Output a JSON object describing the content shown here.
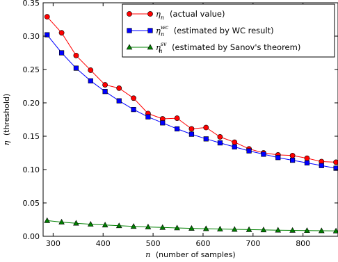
{
  "chart_data": {
    "type": "line",
    "xlabel_var": "n",
    "xlabel_rest": "(number of samples)",
    "ylabel_var": "η",
    "ylabel_rest": "(threshold)",
    "xlim": [
      280,
      870
    ],
    "ylim": [
      0.0,
      0.35
    ],
    "xticks": [
      300,
      400,
      500,
      600,
      700,
      800
    ],
    "yticks": [
      0.0,
      0.05,
      0.1,
      0.15,
      0.2,
      0.25,
      0.3,
      0.35
    ],
    "ytick_labels": [
      "0.00",
      "0.05",
      "0.10",
      "0.15",
      "0.20",
      "0.25",
      "0.30",
      "0.35"
    ],
    "legend_position": "top-right",
    "grid": false,
    "x": [
      288,
      317,
      346,
      375,
      404,
      432,
      461,
      490,
      519,
      548,
      577,
      606,
      634,
      663,
      692,
      721,
      750,
      779,
      808,
      837,
      866
    ],
    "series": [
      {
        "sym": "η",
        "sub": "n",
        "sup": "",
        "desc": "(actual value)",
        "color": "#ff0000",
        "marker": "circle",
        "values": [
          0.329,
          0.305,
          0.271,
          0.249,
          0.227,
          0.222,
          0.207,
          0.184,
          0.176,
          0.177,
          0.161,
          0.163,
          0.149,
          0.141,
          0.131,
          0.125,
          0.122,
          0.121,
          0.117,
          0.112,
          0.111
        ]
      },
      {
        "sym": "η",
        "sub": "n",
        "sup": "wc",
        "desc": "(estimated by WC result)",
        "color": "#0000ff",
        "marker": "square",
        "values": [
          0.302,
          0.275,
          0.252,
          0.233,
          0.217,
          0.203,
          0.19,
          0.179,
          0.17,
          0.161,
          0.153,
          0.146,
          0.14,
          0.134,
          0.128,
          0.123,
          0.118,
          0.114,
          0.11,
          0.106,
          0.102
        ]
      },
      {
        "sym": "η",
        "sub": "n",
        "sup": "sv",
        "desc": "(estimated by Sanov's theorem)",
        "color": "#008000",
        "marker": "triangle",
        "values": [
          0.0235,
          0.0213,
          0.0196,
          0.0181,
          0.0169,
          0.0158,
          0.0148,
          0.014,
          0.0132,
          0.0125,
          0.0119,
          0.0114,
          0.0109,
          0.0104,
          0.01,
          0.0096,
          0.0092,
          0.0089,
          0.0086,
          0.0083,
          0.008
        ]
      }
    ]
  }
}
